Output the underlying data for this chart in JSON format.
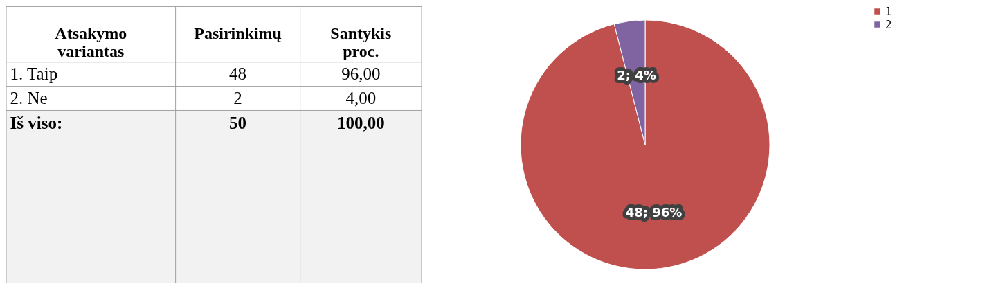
{
  "chart_data": [
    {
      "type": "other",
      "annotations": [
        "Atsakymo variantas",
        "Pasirinkimų",
        "Santykis proc.",
        "1. Taip",
        "48",
        "96,00",
        "2. Ne",
        "2",
        "4,00",
        "Iš viso:",
        "50",
        "100,00"
      ]
    },
    {
      "type": "pie",
      "categories": [
        "1",
        "2"
      ],
      "values": [
        48,
        2
      ],
      "value_labels": [
        "48; 96%",
        "2; 4%"
      ],
      "colors": [
        "#c0504d",
        "#8064a2"
      ],
      "legend": "right"
    }
  ]
}
